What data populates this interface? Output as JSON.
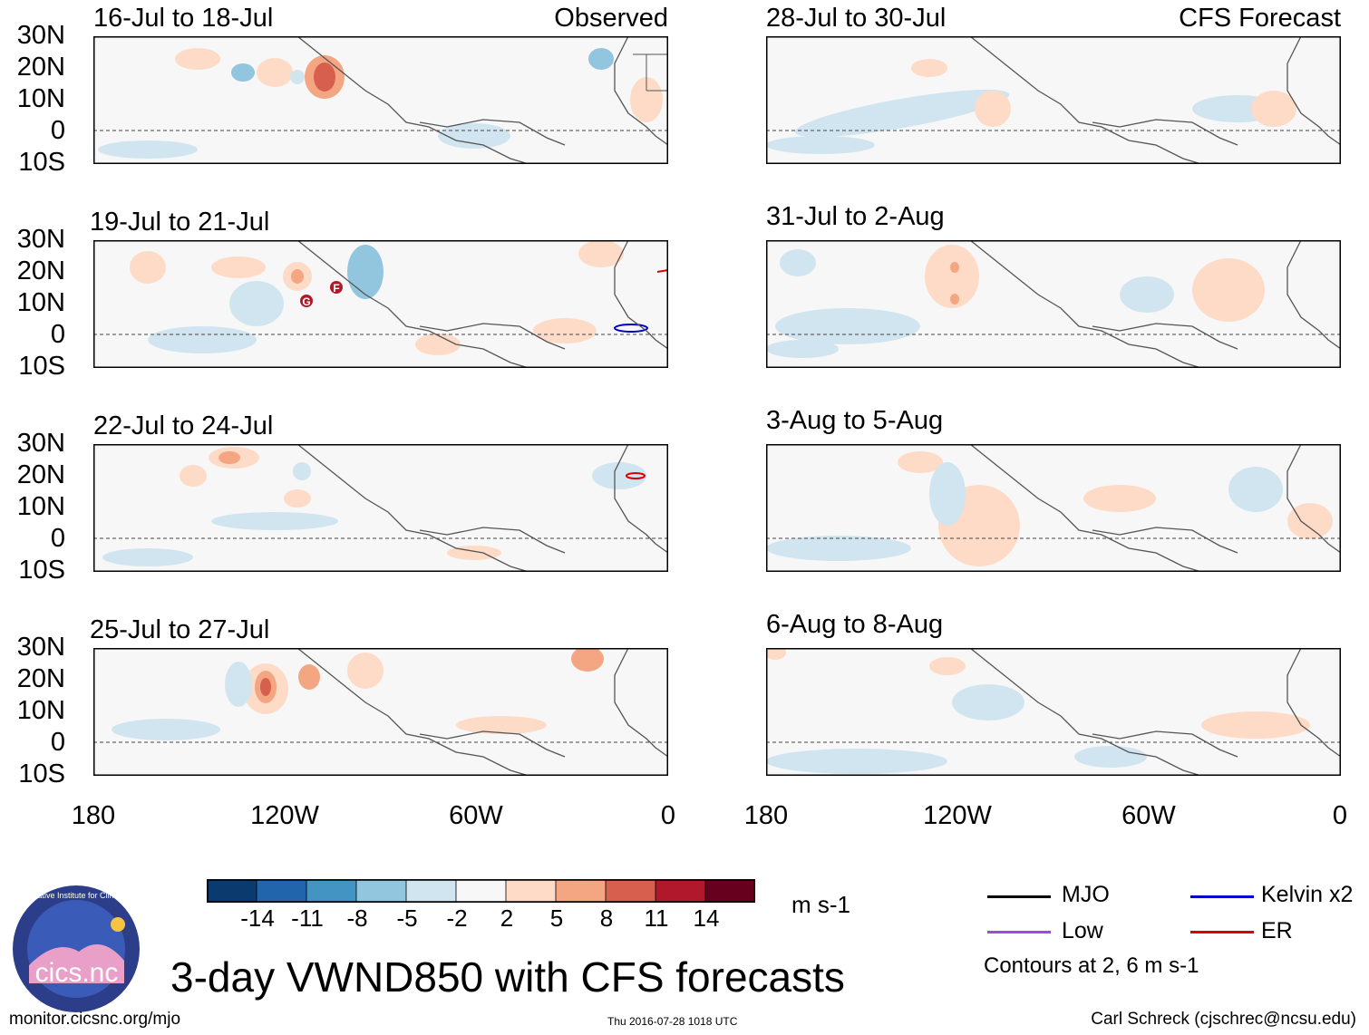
{
  "panels_left": [
    {
      "date": "16-Jul to 18-Jul",
      "tag": "Observed"
    },
    {
      "date": "19-Jul to 21-Jul",
      "tag": ""
    },
    {
      "date": "22-Jul to 24-Jul",
      "tag": ""
    },
    {
      "date": "25-Jul to 27-Jul",
      "tag": ""
    }
  ],
  "panels_right": [
    {
      "date": "28-Jul to 30-Jul",
      "tag": "CFS Forecast"
    },
    {
      "date": "31-Jul to 2-Aug",
      "tag": ""
    },
    {
      "date": "3-Aug to 5-Aug",
      "tag": ""
    },
    {
      "date": "6-Aug to 8-Aug",
      "tag": ""
    }
  ],
  "lat_labels": [
    "30N",
    "20N",
    "10N",
    "0",
    "10S"
  ],
  "lon_labels": [
    "180",
    "120W",
    "60W",
    "0"
  ],
  "colorbar": {
    "labels": [
      "-14",
      "-11",
      "-8",
      "-5",
      "-2",
      "2",
      "5",
      "8",
      "11",
      "14"
    ],
    "colors": [
      "#0b3a6e",
      "#2166ac",
      "#4393c3",
      "#92c5de",
      "#d1e5f0",
      "#f7f7f7",
      "#fddbc7",
      "#f4a582",
      "#d6604d",
      "#b2182b",
      "#67001f"
    ],
    "units": "m s-1"
  },
  "legend": {
    "mjo": "MJO",
    "mjo_color": "#000000",
    "low": "Low",
    "low_color": "#9b4be0",
    "kelvin": "Kelvin x2",
    "kelvin_color": "#0000cc",
    "er": "ER",
    "er_color": "#dd0000",
    "note": "Contours at 2, 6 m s-1"
  },
  "storm_markers": [
    "G",
    "F"
  ],
  "logo_text": "cics.nc",
  "logo_ring_text": "Cooperative Institute for Climate and Satellites",
  "title": "3-day VWND850 with CFS forecasts",
  "footer": {
    "url": "monitor.cicsnc.org/mjo",
    "timestamp": "Thu 2016-07-28 1018 UTC",
    "author": "Carl Schreck (cjschrec@ncsu.edu)"
  }
}
